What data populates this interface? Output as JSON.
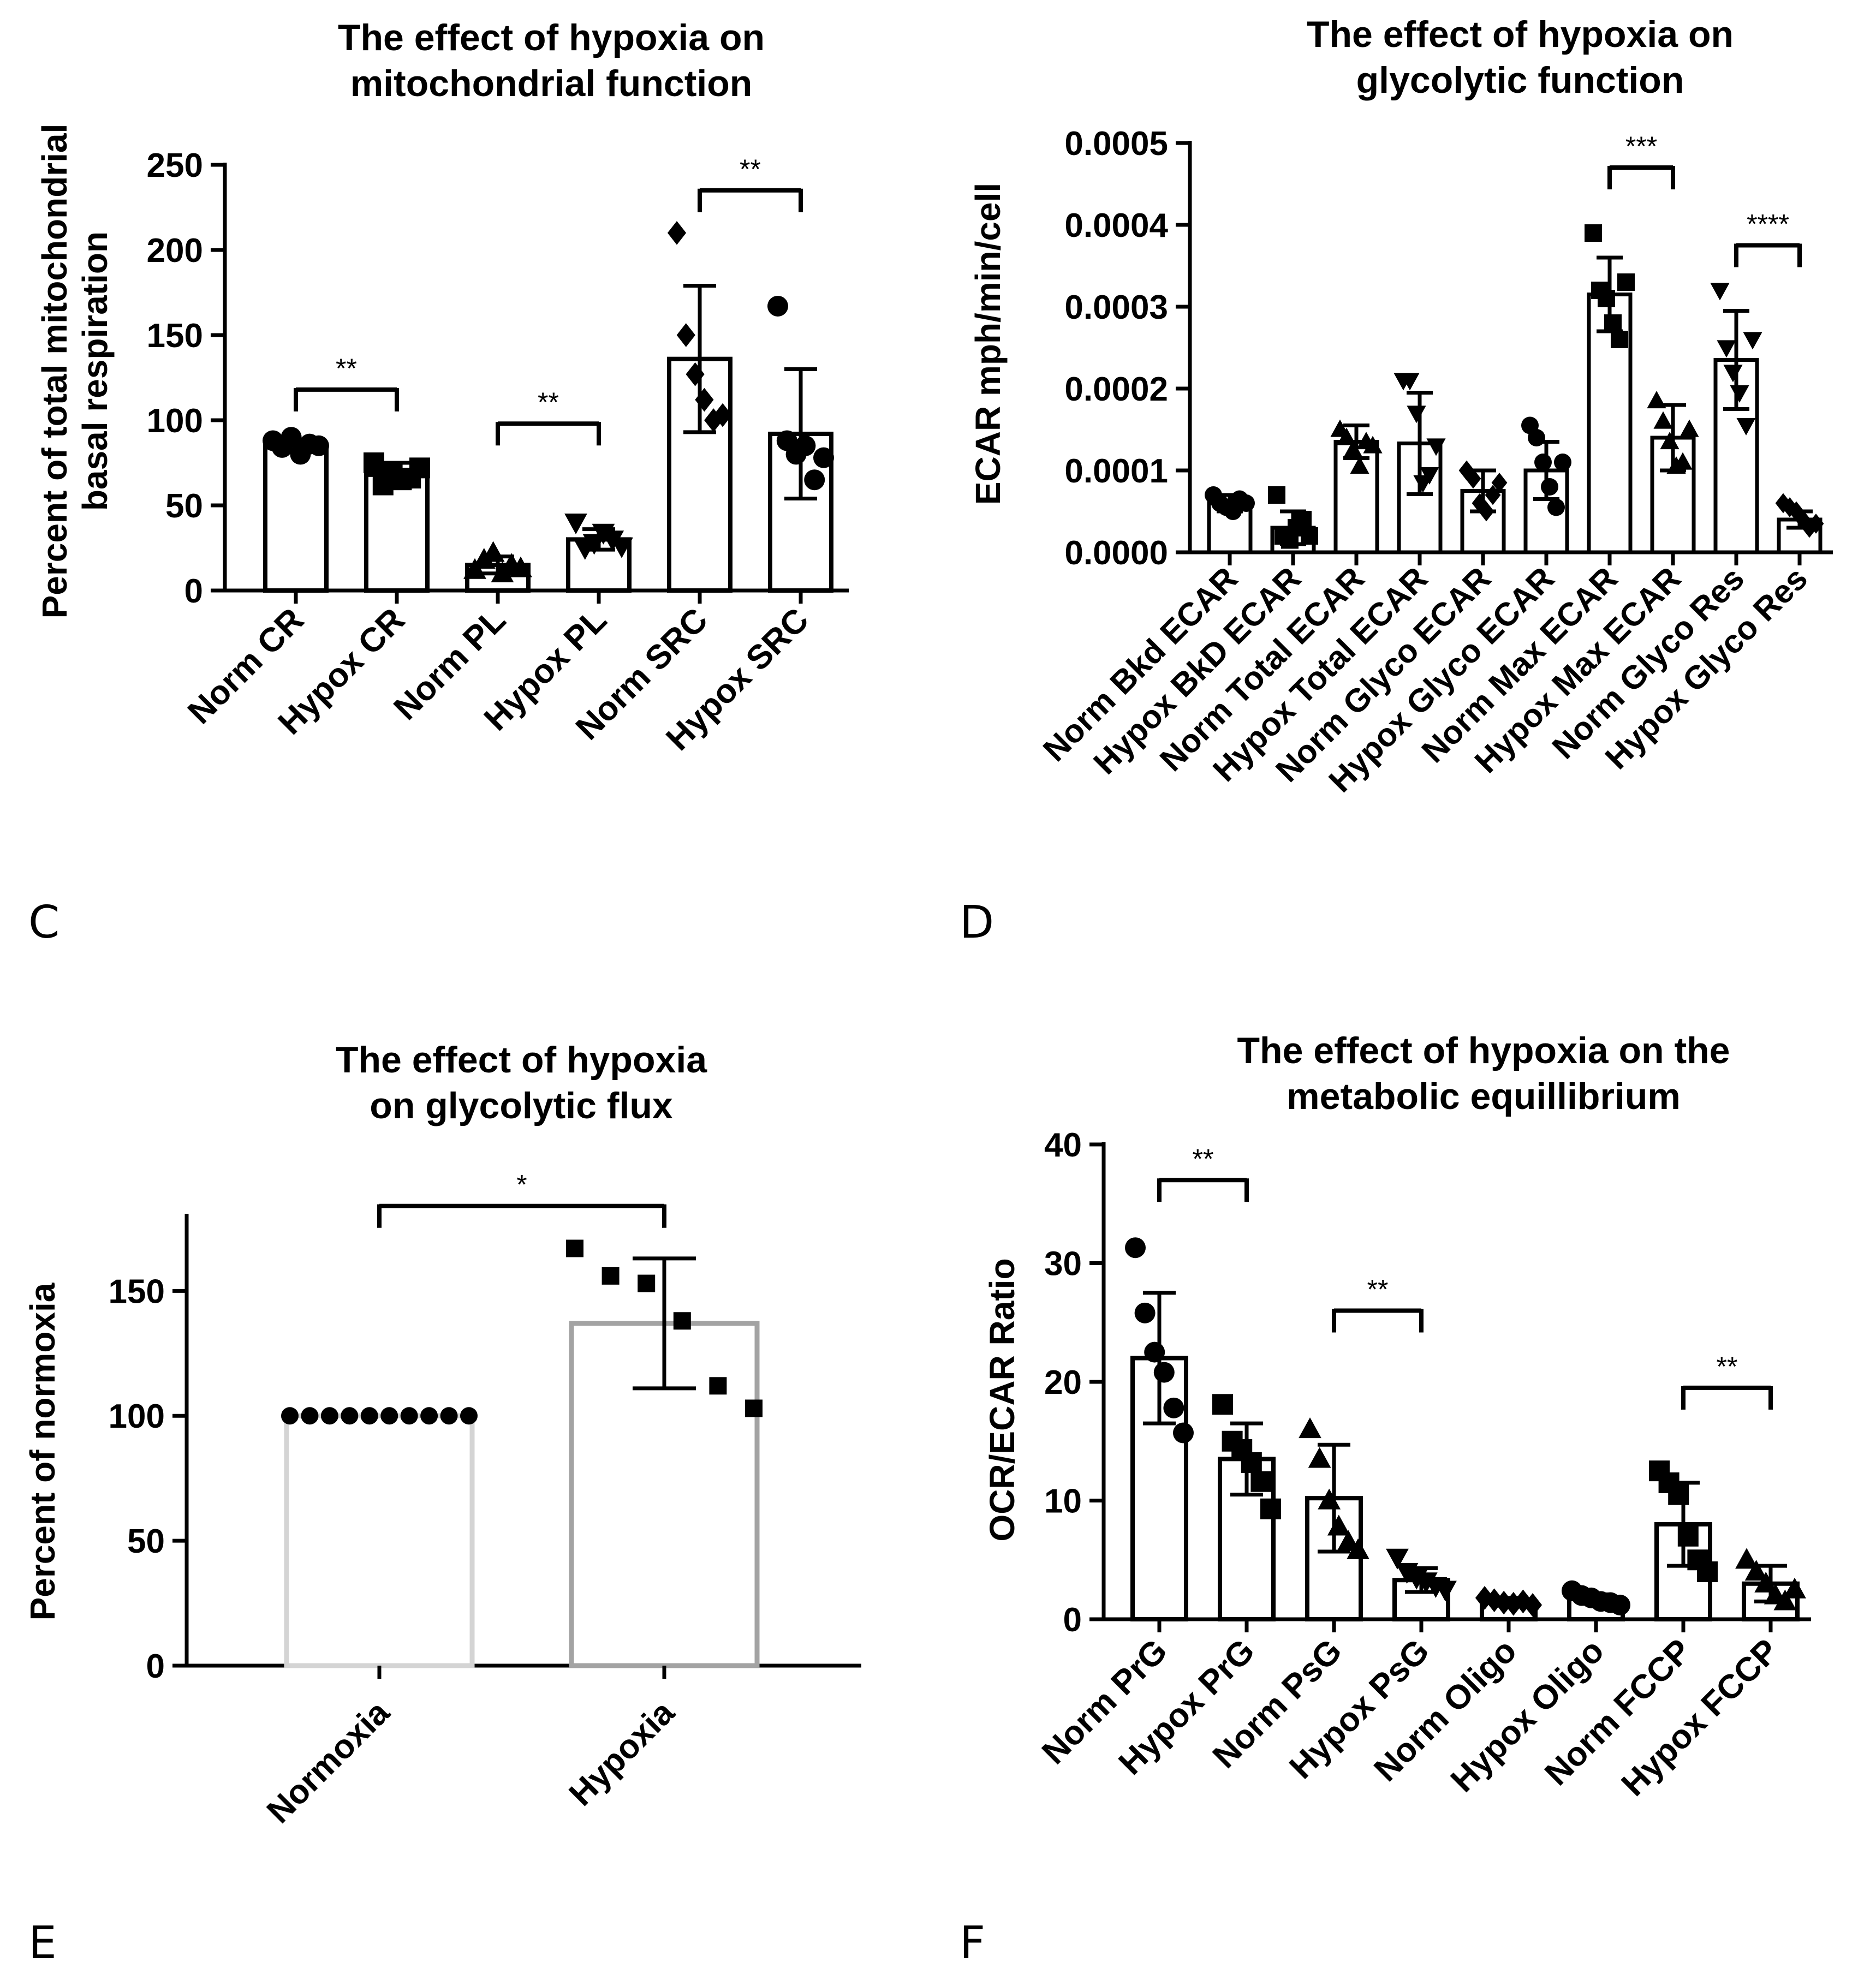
{
  "chart_data": [
    {
      "id": "C",
      "type": "bar",
      "panel_label": "C",
      "title": [
        "The effect of hypoxia on",
        "mitochondrial function"
      ],
      "xlabel": "",
      "ylabel": [
        "Percent of total mitochondrial",
        "basal respiration"
      ],
      "ylim": [
        0,
        250
      ],
      "yticks": [
        0,
        50,
        100,
        150,
        200,
        250
      ],
      "ytick_labels": [
        "0",
        "50",
        "100",
        "150",
        "200",
        "250"
      ],
      "categories": [
        "Norm CR",
        "Hypox CR",
        "Norm PL",
        "Hypox PL",
        "Norm SRC",
        "Hypox SRC"
      ],
      "values": [
        85,
        68,
        15,
        30,
        136,
        92
      ],
      "errors": [
        3,
        7,
        5,
        6,
        43,
        38
      ],
      "markers": [
        "circle",
        "square",
        "triangle",
        "triangle-down",
        "diamond",
        "circle"
      ],
      "points": [
        [
          88,
          84,
          90,
          80,
          86,
          85
        ],
        [
          75,
          62,
          70,
          65,
          66,
          72
        ],
        [
          12,
          18,
          22,
          10,
          15,
          13
        ],
        [
          40,
          25,
          28,
          34,
          30,
          26
        ],
        [
          210,
          150,
          127,
          112,
          100,
          103
        ],
        [
          167,
          88,
          80,
          85,
          65,
          78
        ]
      ],
      "significance": [
        {
          "pair": [
            0,
            1
          ],
          "y": 118,
          "label": "**"
        },
        {
          "pair": [
            2,
            3
          ],
          "y": 98,
          "label": "**"
        },
        {
          "pair": [
            4,
            5
          ],
          "y": 235,
          "label": "**"
        }
      ]
    },
    {
      "id": "D",
      "type": "bar",
      "panel_label": "D",
      "title": [
        "The effect of hypoxia on",
        "glycolytic function"
      ],
      "xlabel": "",
      "ylabel": [
        "ECAR mph/min/cell"
      ],
      "ylim": [
        0,
        0.0005
      ],
      "yticks": [
        0,
        0.0001,
        0.0002,
        0.0003,
        0.0004,
        0.0005
      ],
      "ytick_labels": [
        "0.0000",
        "0.0001",
        "0.0002",
        "0.0003",
        "0.0004",
        "0.0005"
      ],
      "categories": [
        "Norm Bkd ECAR",
        "Hypox BkD ECAR",
        "Norm Total ECAR",
        "Hypox Total ECAR",
        "Norm Glyco ECAR",
        "Hypox Glyco ECAR",
        "Norm Max ECAR",
        "Hypox Max ECAR",
        "Norm Glyco Res",
        "Hypox Glyco Res"
      ],
      "values": [
        6e-05,
        3e-05,
        0.000135,
        0.000133,
        7.5e-05,
        0.0001,
        0.000315,
        0.00014,
        0.000235,
        4e-05
      ],
      "errors": [
        1e-05,
        2e-05,
        2e-05,
        6.2e-05,
        2.5e-05,
        3.5e-05,
        4.5e-05,
        4e-05,
        6e-05,
        1e-05
      ],
      "markers": [
        "circle",
        "square",
        "triangle",
        "triangle-down",
        "diamond",
        "circle",
        "square",
        "triangle",
        "triangle-down",
        "diamond"
      ],
      "points": [
        [
          7e-05,
          6e-05,
          5.5e-05,
          5e-05,
          6.5e-05,
          6e-05
        ],
        [
          7e-05,
          2e-05,
          1.5e-05,
          3e-05,
          4e-05,
          2e-05
        ],
        [
          0.00015,
          0.00014,
          0.000125,
          0.000105,
          0.000135,
          0.00013
        ],
        [
          0.00021,
          0.00021,
          0.00017,
          8.5e-05,
          9.5e-05,
          0.00013
        ],
        [
          0.0001,
          9e-05,
          6e-05,
          5e-05,
          7e-05,
          8.5e-05
        ],
        [
          0.000155,
          0.00014,
          0.00011,
          8e-05,
          5.5e-05,
          0.00011
        ],
        [
          0.00039,
          0.00032,
          0.00031,
          0.00028,
          0.00026,
          0.00033
        ],
        [
          0.000185,
          0.00016,
          0.000135,
          0.000105,
          0.00011,
          0.00015
        ],
        [
          0.00032,
          0.00025,
          0.00022,
          0.000195,
          0.000155,
          0.00026
        ],
        [
          6e-05,
          5.5e-05,
          5e-05,
          4e-05,
          3e-05,
          3.5e-05
        ]
      ],
      "significance": [
        {
          "pair": [
            6,
            7
          ],
          "y": 0.00047,
          "label": "***"
        },
        {
          "pair": [
            8,
            9
          ],
          "y": 0.000375,
          "label": "****"
        }
      ]
    },
    {
      "id": "E",
      "type": "bar",
      "panel_label": "E",
      "title": [
        "The effect of hypoxia",
        "on glycolytic flux"
      ],
      "xlabel": "",
      "ylabel": [
        "Percent of normoxia"
      ],
      "ylim": [
        0,
        180
      ],
      "yticks": [
        0,
        50,
        100,
        150
      ],
      "ytick_labels": [
        "0",
        "50",
        "100",
        "150"
      ],
      "categories": [
        "Normoxia",
        "Hypoxia"
      ],
      "values": [
        100,
        137
      ],
      "errors": [
        0,
        26
      ],
      "bar_colors": [
        "#d4d4d4",
        "#a3a3a3"
      ],
      "markers": [
        "circle",
        "square"
      ],
      "points": [
        [
          100,
          100,
          100,
          100,
          100,
          100,
          100,
          100,
          100,
          100
        ],
        [
          167,
          156,
          153,
          138,
          112,
          103
        ]
      ],
      "significance": [
        {
          "pair": [
            0,
            1
          ],
          "y": 184,
          "label": "*"
        }
      ]
    },
    {
      "id": "F",
      "type": "bar",
      "panel_label": "F",
      "title": [
        "The effect of hypoxia on the",
        "metabolic equillibrium"
      ],
      "xlabel": "",
      "ylabel": [
        "OCR/ECAR Ratio"
      ],
      "ylim": [
        0,
        40
      ],
      "yticks": [
        0,
        10,
        20,
        30,
        40
      ],
      "ytick_labels": [
        "0",
        "10",
        "20",
        "30",
        "40"
      ],
      "categories": [
        "Norm PrG",
        "Hypox PrG",
        "Norm PsG",
        "Hypox PsG",
        "Norm Oligo",
        "Hypox Oligo",
        "Norm FCCP",
        "Hypox FCCP"
      ],
      "values": [
        22,
        13.5,
        10.2,
        3.3,
        1.5,
        1.7,
        8.0,
        3.0
      ],
      "errors": [
        5.5,
        3,
        4.5,
        1,
        0.3,
        0.4,
        3.5,
        1.5
      ],
      "markers": [
        "circle",
        "square",
        "triangle",
        "triangle-down",
        "diamond",
        "circle",
        "square",
        "triangle"
      ],
      "points": [
        [
          31.3,
          25.8,
          22.5,
          20.8,
          17.8,
          15.7
        ],
        [
          18.1,
          15.0,
          14.3,
          13.2,
          11.6,
          9.3
        ],
        [
          16.0,
          13.5,
          10.0,
          7.8,
          6.5,
          5.8
        ],
        [
          5.2,
          4.0,
          3.5,
          3.2,
          2.8,
          2.5
        ],
        [
          1.8,
          1.6,
          1.4,
          1.3,
          1.5,
          1.2
        ],
        [
          2.4,
          2.0,
          1.8,
          1.5,
          1.4,
          1.2
        ],
        [
          12.5,
          11.5,
          10.5,
          7.0,
          5.0,
          4.0
        ],
        [
          5.0,
          4.0,
          3.0,
          2.0,
          1.5,
          2.5
        ]
      ],
      "significance": [
        {
          "pair": [
            0,
            1
          ],
          "y": 37,
          "label": "**"
        },
        {
          "pair": [
            2,
            3
          ],
          "y": 26,
          "label": "**"
        },
        {
          "pair": [
            6,
            7
          ],
          "y": 19.5,
          "label": "**"
        }
      ]
    }
  ]
}
